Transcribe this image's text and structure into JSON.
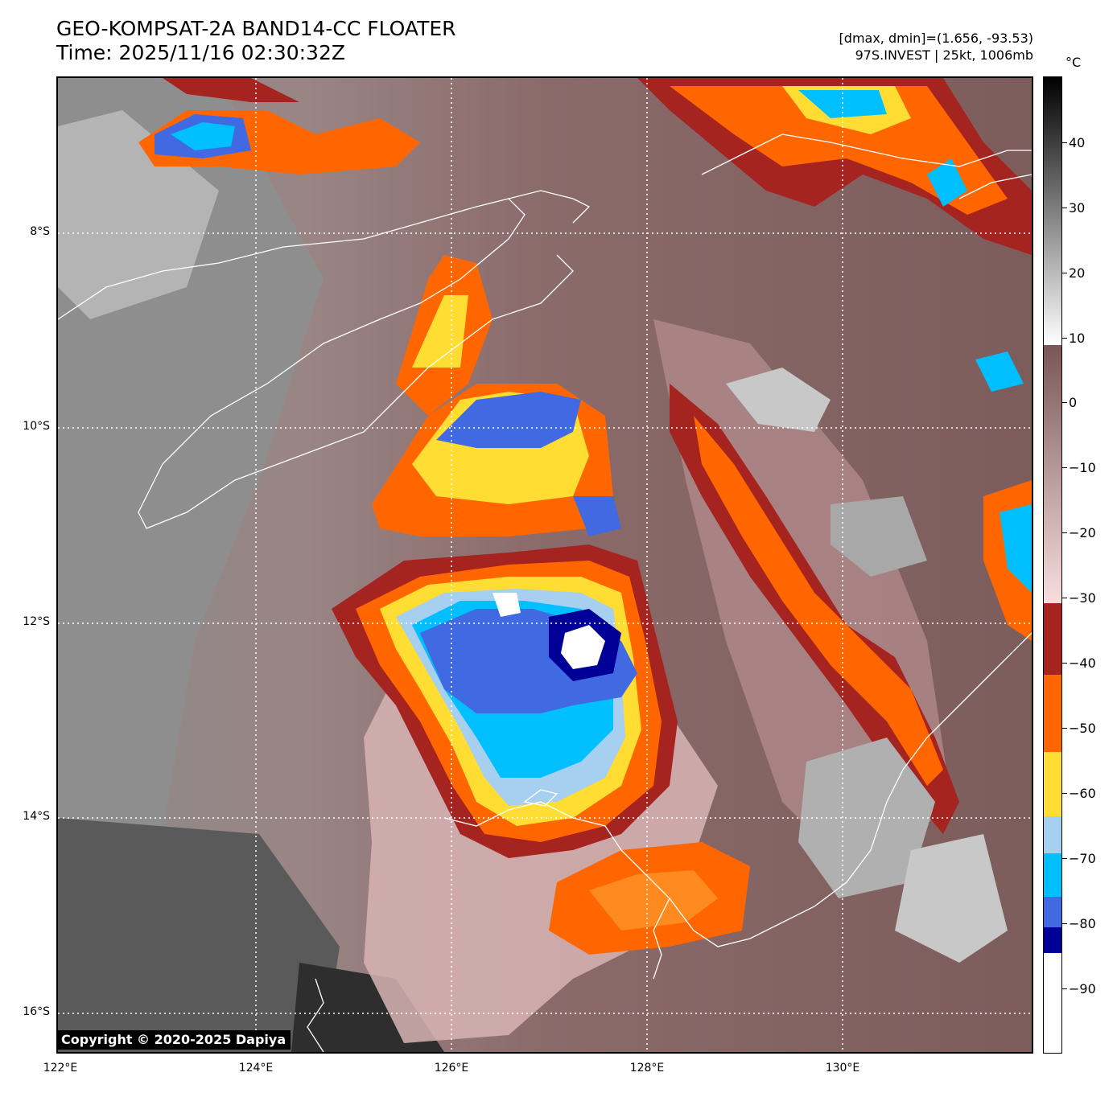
{
  "header": {
    "title_line1": "GEO-KOMPSAT-2A BAND14-CC FLOATER",
    "title_line2": "Time: 2025/11/16 02:30:32Z",
    "info_line1": "[dmax, dmin]=(1.656, -93.53)",
    "info_line2": "97S.INVEST | 25kt, 1006mb"
  },
  "map": {
    "lat_labels": [
      "8°S",
      "10°S",
      "12°S",
      "14°S",
      "16°S"
    ],
    "lon_labels": [
      "122°E",
      "124°E",
      "126°E",
      "128°E",
      "130°E"
    ],
    "copyright": "Copyright © 2020-2025 Dapiya"
  },
  "colorbar": {
    "unit": "°C",
    "ticks": [
      "40",
      "30",
      "20",
      "10",
      "0",
      "−10",
      "−20",
      "−30",
      "−40",
      "−50",
      "−60",
      "−70",
      "−80",
      "−90"
    ],
    "colors": {
      "white": "#ffffff",
      "navy": "#000099",
      "royal": "#4169e1",
      "cyan": "#00bfff",
      "lightblue": "#a6cff0",
      "yellow": "#ffdd33",
      "orange": "#ff6600",
      "darkred": "#a52420",
      "pink": "#f5dada",
      "mauve": "#7a5656"
    }
  }
}
